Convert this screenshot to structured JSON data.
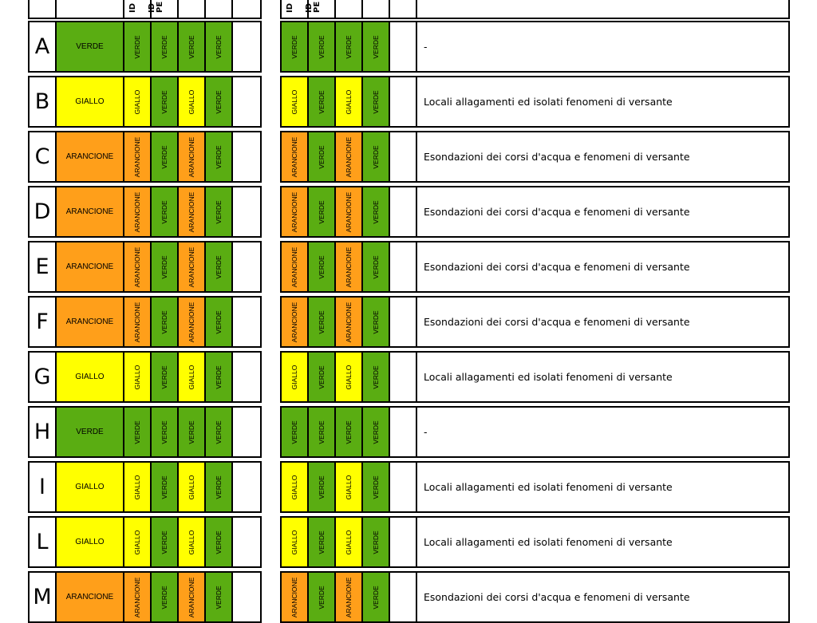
{
  "colors": {
    "VERDE": "#5aad12",
    "GIALLO": "#ffff00",
    "ARANCIONE": "#ff9f1a"
  },
  "header": {
    "col_1": "ID",
    "col_2": "ID\nPE"
  },
  "rows": [
    {
      "zone": "A",
      "level": "VERDE",
      "sub": [
        "VERDE",
        "VERDE",
        "VERDE",
        "VERDE"
      ],
      "sub_right": [
        "VERDE",
        "VERDE",
        "VERDE",
        "VERDE"
      ],
      "description": "-"
    },
    {
      "zone": "B",
      "level": "GIALLO",
      "sub": [
        "GIALLO",
        "VERDE",
        "GIALLO",
        "VERDE"
      ],
      "sub_right": [
        "GIALLO",
        "VERDE",
        "GIALLO",
        "VERDE"
      ],
      "description": "Locali allagamenti ed isolati fenomeni di versante"
    },
    {
      "zone": "C",
      "level": "ARANCIONE",
      "sub": [
        "ARANCIONE",
        "VERDE",
        "ARANCIONE",
        "VERDE"
      ],
      "sub_right": [
        "ARANCIONE",
        "VERDE",
        "ARANCIONE",
        "VERDE"
      ],
      "description": "Esondazioni dei corsi d'acqua e fenomeni di versante"
    },
    {
      "zone": "D",
      "level": "ARANCIONE",
      "sub": [
        "ARANCIONE",
        "VERDE",
        "ARANCIONE",
        "VERDE"
      ],
      "sub_right": [
        "ARANCIONE",
        "VERDE",
        "ARANCIONE",
        "VERDE"
      ],
      "description": "Esondazioni dei corsi d'acqua e fenomeni di versante"
    },
    {
      "zone": "E",
      "level": "ARANCIONE",
      "sub": [
        "ARANCIONE",
        "VERDE",
        "ARANCIONE",
        "VERDE"
      ],
      "sub_right": [
        "ARANCIONE",
        "VERDE",
        "ARANCIONE",
        "VERDE"
      ],
      "description": "Esondazioni dei corsi d'acqua e fenomeni di versante"
    },
    {
      "zone": "F",
      "level": "ARANCIONE",
      "sub": [
        "ARANCIONE",
        "VERDE",
        "ARANCIONE",
        "VERDE"
      ],
      "sub_right": [
        "ARANCIONE",
        "VERDE",
        "ARANCIONE",
        "VERDE"
      ],
      "description": "Esondazioni dei corsi d'acqua e fenomeni di versante"
    },
    {
      "zone": "G",
      "level": "GIALLO",
      "sub": [
        "GIALLO",
        "VERDE",
        "GIALLO",
        "VERDE"
      ],
      "sub_right": [
        "GIALLO",
        "VERDE",
        "GIALLO",
        "VERDE"
      ],
      "description": "Locali allagamenti ed isolati fenomeni di versante"
    },
    {
      "zone": "H",
      "level": "VERDE",
      "sub": [
        "VERDE",
        "VERDE",
        "VERDE",
        "VERDE"
      ],
      "sub_right": [
        "VERDE",
        "VERDE",
        "VERDE",
        "VERDE"
      ],
      "description": "-"
    },
    {
      "zone": "I",
      "level": "GIALLO",
      "sub": [
        "GIALLO",
        "VERDE",
        "GIALLO",
        "VERDE"
      ],
      "sub_right": [
        "GIALLO",
        "VERDE",
        "GIALLO",
        "VERDE"
      ],
      "description": "Locali allagamenti ed isolati fenomeni di versante"
    },
    {
      "zone": "L",
      "level": "GIALLO",
      "sub": [
        "GIALLO",
        "VERDE",
        "GIALLO",
        "VERDE"
      ],
      "sub_right": [
        "GIALLO",
        "VERDE",
        "GIALLO",
        "VERDE"
      ],
      "description": "Locali allagamenti ed isolati fenomeni di versante"
    },
    {
      "zone": "M",
      "level": "ARANCIONE",
      "sub": [
        "ARANCIONE",
        "VERDE",
        "ARANCIONE",
        "VERDE"
      ],
      "sub_right": [
        "ARANCIONE",
        "VERDE",
        "ARANCIONE",
        "VERDE"
      ],
      "description": "Esondazioni dei corsi d'acqua e fenomeni di versante"
    }
  ]
}
